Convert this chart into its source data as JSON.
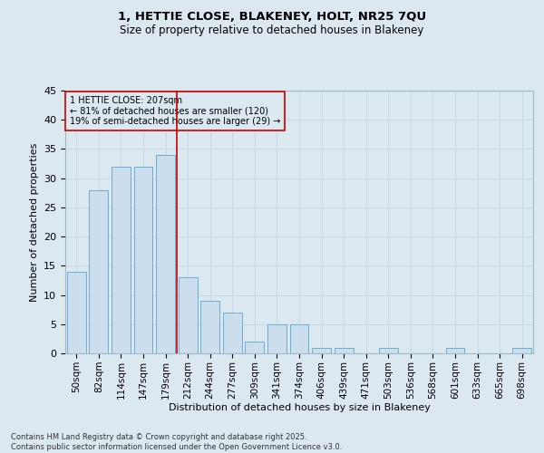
{
  "title_line1": "1, HETTIE CLOSE, BLAKENEY, HOLT, NR25 7QU",
  "title_line2": "Size of property relative to detached houses in Blakeney",
  "xlabel": "Distribution of detached houses by size in Blakeney",
  "ylabel": "Number of detached properties",
  "categories": [
    "50sqm",
    "82sqm",
    "114sqm",
    "147sqm",
    "179sqm",
    "212sqm",
    "244sqm",
    "277sqm",
    "309sqm",
    "341sqm",
    "374sqm",
    "406sqm",
    "439sqm",
    "471sqm",
    "503sqm",
    "536sqm",
    "568sqm",
    "601sqm",
    "633sqm",
    "665sqm",
    "698sqm"
  ],
  "values": [
    14,
    28,
    32,
    32,
    34,
    13,
    9,
    7,
    2,
    5,
    5,
    1,
    1,
    0,
    1,
    0,
    0,
    1,
    0,
    0,
    1
  ],
  "bar_color": "#ccdded",
  "bar_edge_color": "#6aadd5",
  "grid_color": "#c8d8e8",
  "vline_color": "#cc0000",
  "vline_x_index": 5,
  "annotation_text": "1 HETTIE CLOSE: 207sqm\n← 81% of detached houses are smaller (120)\n19% of semi-detached houses are larger (29) →",
  "annotation_box_color": "#cc0000",
  "ylim": [
    0,
    45
  ],
  "yticks": [
    0,
    5,
    10,
    15,
    20,
    25,
    30,
    35,
    40,
    45
  ],
  "footer_line1": "Contains HM Land Registry data © Crown copyright and database right 2025.",
  "footer_line2": "Contains public sector information licensed under the Open Government Licence v3.0.",
  "bg_color": "#dce8f0",
  "plot_bg_color": "#dce8f0"
}
